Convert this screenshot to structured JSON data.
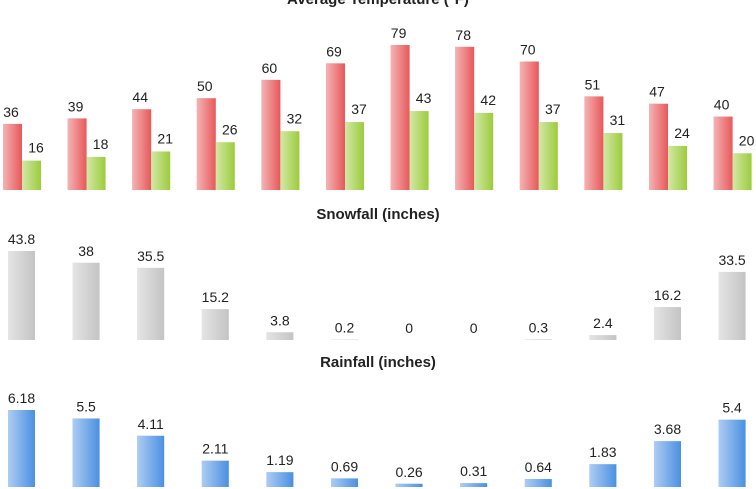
{
  "chart_data": [
    {
      "type": "bar",
      "title": "Average Temperature (°F)",
      "series": [
        {
          "color": "#e8585a",
          "values": [
            36,
            39,
            44,
            50,
            60,
            69,
            79,
            78,
            70,
            51,
            47,
            40
          ]
        },
        {
          "color": "#9ccc3c",
          "values": [
            16,
            18,
            21,
            26,
            32,
            37,
            43,
            42,
            37,
            31,
            24,
            20
          ]
        }
      ]
    },
    {
      "type": "bar",
      "title": "Snowfall (inches)",
      "series": [
        {
          "color": "#c4c4c4",
          "values": [
            43.8,
            38,
            35.5,
            15.2,
            3.8,
            0.2,
            0,
            0,
            0.3,
            2.4,
            16.2,
            33.5
          ]
        }
      ]
    },
    {
      "type": "bar",
      "title": "Rainfall (inches)",
      "series": [
        {
          "color": "#4a90e2",
          "values": [
            6.18,
            5.5,
            4.11,
            2.11,
            1.19,
            0.69,
            0.26,
            0.31,
            0.64,
            1.83,
            3.68,
            5.4
          ]
        }
      ]
    }
  ]
}
